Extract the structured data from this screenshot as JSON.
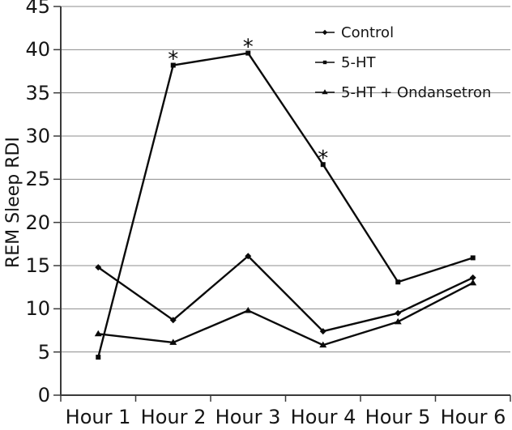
{
  "chart_data": {
    "type": "line",
    "title": "",
    "xlabel": "",
    "ylabel": "REM Sleep RDI",
    "categories": [
      "Hour 1",
      "Hour 2",
      "Hour 3",
      "Hour 4",
      "Hour 5",
      "Hour 6"
    ],
    "series": [
      {
        "name": "Control",
        "marker": "diamond",
        "values": [
          14.8,
          8.7,
          16.1,
          7.4,
          9.5,
          13.6
        ],
        "annotations": [
          "",
          "",
          "",
          "",
          "",
          ""
        ]
      },
      {
        "name": "5-HT",
        "marker": "square",
        "values": [
          4.4,
          38.2,
          39.6,
          26.7,
          13.1,
          15.9
        ],
        "annotations": [
          "",
          "*",
          "*",
          "*",
          "",
          ""
        ]
      },
      {
        "name": "5-HT + Ondansetron",
        "marker": "triangle",
        "values": [
          7.1,
          6.1,
          9.8,
          5.8,
          8.5,
          13.0
        ],
        "annotations": [
          "",
          "",
          "",
          "",
          "",
          ""
        ]
      }
    ],
    "ylim": [
      0,
      45
    ],
    "ytick_step": 5,
    "yticks": [
      "45",
      "40",
      "35",
      "30",
      "25",
      "20",
      "15",
      "10",
      "5",
      "0"
    ],
    "grid": "horizontal",
    "legend_position": "top-right",
    "colors": {
      "line": "#0a0a0a",
      "grid": "#8c8c8c",
      "axis": "#3a3a3a",
      "background": "#ffffff",
      "text": "#151515"
    }
  }
}
